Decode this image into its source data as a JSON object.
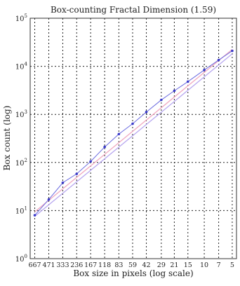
{
  "chart_data": {
    "type": "scatter",
    "title": "Box-counting Fractal Dimension (1.59)",
    "xlabel": "Box size in pixels (log scale)",
    "ylabel": "Box count (log)",
    "x_scale": "log",
    "y_scale": "log",
    "x_reversed": true,
    "xlim": [
      747,
      4.5
    ],
    "ylim": [
      1,
      100000
    ],
    "grid": true,
    "x": [
      667,
      471,
      333,
      236,
      167,
      118,
      83,
      59,
      42,
      29,
      21,
      15,
      10,
      7,
      5
    ],
    "y": [
      8,
      17,
      38,
      58,
      105,
      210,
      390,
      640,
      1120,
      2000,
      3100,
      4800,
      8400,
      13500,
      21000
    ],
    "x_tick_labels": [
      "667",
      "471",
      "333",
      "236",
      "167",
      "118",
      "83",
      "59",
      "42",
      "29",
      "21",
      "15",
      "10",
      "7",
      "5"
    ],
    "y_ticks": [
      {
        "base": "10",
        "exp": "0",
        "value": 1
      },
      {
        "base": "10",
        "exp": "1",
        "value": 10
      },
      {
        "base": "10",
        "exp": "2",
        "value": 100
      },
      {
        "base": "10",
        "exp": "3",
        "value": 1000
      },
      {
        "base": "10",
        "exp": "4",
        "value": 10000
      },
      {
        "base": "10",
        "exp": "5",
        "value": 100000
      }
    ],
    "fit_slope": 1.59,
    "fit_lines": [
      {
        "y_at_x0": 9.4,
        "color": "#f0a8c0"
      },
      {
        "y_at_x0": 7.6,
        "color": "#b8a8f0"
      }
    ],
    "marker_color": "#3a3ac8",
    "line_color": "#6a6ae0"
  }
}
